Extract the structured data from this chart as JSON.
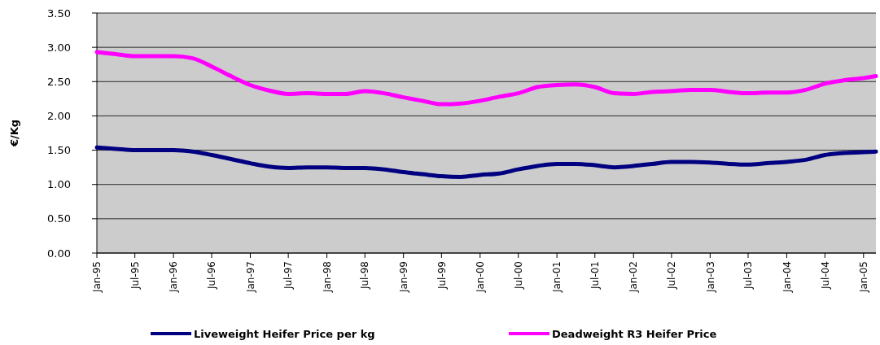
{
  "chart_data": {
    "type": "line",
    "ylabel": "€/Kg",
    "x": [
      "1995-01",
      "1995-04",
      "1995-07",
      "1995-10",
      "1996-01",
      "1996-04",
      "1996-07",
      "1996-10",
      "1997-01",
      "1997-04",
      "1997-07",
      "1997-10",
      "1998-01",
      "1998-04",
      "1998-07",
      "1998-10",
      "1999-01",
      "1999-04",
      "1999-07",
      "1999-10",
      "2000-01",
      "2000-04",
      "2000-07",
      "2000-10",
      "2001-01",
      "2001-04",
      "2001-07",
      "2001-10",
      "2002-01",
      "2002-04",
      "2002-07",
      "2002-10",
      "2003-01",
      "2003-04",
      "2003-07",
      "2003-10",
      "2004-01",
      "2004-04",
      "2004-07",
      "2004-10",
      "2005-01",
      "2005-03"
    ],
    "series": [
      {
        "name": "Liveweight Heifer Price per kg",
        "color": "#000080",
        "values": [
          1.54,
          1.52,
          1.5,
          1.5,
          1.5,
          1.48,
          1.43,
          1.37,
          1.31,
          1.26,
          1.24,
          1.25,
          1.25,
          1.24,
          1.24,
          1.22,
          1.18,
          1.15,
          1.12,
          1.11,
          1.14,
          1.16,
          1.22,
          1.27,
          1.3,
          1.3,
          1.28,
          1.25,
          1.27,
          1.3,
          1.33,
          1.33,
          1.32,
          1.3,
          1.29,
          1.31,
          1.33,
          1.36,
          1.43,
          1.46,
          1.47,
          1.48
        ]
      },
      {
        "name": "Deadweight R3 Heifer Price",
        "color": "#ff00ff",
        "values": [
          2.93,
          2.9,
          2.87,
          2.87,
          2.87,
          2.84,
          2.72,
          2.58,
          2.45,
          2.37,
          2.32,
          2.33,
          2.32,
          2.32,
          2.36,
          2.33,
          2.27,
          2.22,
          2.17,
          2.18,
          2.22,
          2.28,
          2.33,
          2.42,
          2.45,
          2.46,
          2.42,
          2.33,
          2.32,
          2.35,
          2.36,
          2.38,
          2.38,
          2.35,
          2.33,
          2.34,
          2.34,
          2.38,
          2.47,
          2.52,
          2.55,
          2.58
        ]
      }
    ],
    "xlim": [
      "1995-01",
      "2005-03"
    ],
    "xticks": [
      {
        "value": "1995-01",
        "label": "Jan-95"
      },
      {
        "value": "1995-07",
        "label": "Jul-95"
      },
      {
        "value": "1996-01",
        "label": "Jan-96"
      },
      {
        "value": "1996-07",
        "label": "Jul-96"
      },
      {
        "value": "1997-01",
        "label": "Jan-97"
      },
      {
        "value": "1997-07",
        "label": "Jul-97"
      },
      {
        "value": "1998-01",
        "label": "Jan-98"
      },
      {
        "value": "1998-07",
        "label": "Jul-98"
      },
      {
        "value": "1999-01",
        "label": "Jan-99"
      },
      {
        "value": "1999-07",
        "label": "Jul-99"
      },
      {
        "value": "2000-01",
        "label": "Jan-00"
      },
      {
        "value": "2000-07",
        "label": "Jul-00"
      },
      {
        "value": "2001-01",
        "label": "Jan-01"
      },
      {
        "value": "2001-07",
        "label": "Jul-01"
      },
      {
        "value": "2002-01",
        "label": "Jan-02"
      },
      {
        "value": "2002-07",
        "label": "Jul-02"
      },
      {
        "value": "2003-01",
        "label": "Jan-03"
      },
      {
        "value": "2003-07",
        "label": "Jul-03"
      },
      {
        "value": "2004-01",
        "label": "Jan-04"
      },
      {
        "value": "2004-07",
        "label": "Jul-04"
      },
      {
        "value": "2005-01",
        "label": "Jan-05"
      }
    ],
    "ylim": [
      0,
      3.5
    ],
    "yticks": [
      {
        "value": 0,
        "label": "0.00"
      },
      {
        "value": 0.5,
        "label": "0.50"
      },
      {
        "value": 1,
        "label": "1.00"
      },
      {
        "value": 1.5,
        "label": "1.50"
      },
      {
        "value": 2,
        "label": "2.00"
      },
      {
        "value": 2.5,
        "label": "2.50"
      },
      {
        "value": 3,
        "label": "3.00"
      },
      {
        "value": 3.5,
        "label": "3.50"
      }
    ],
    "grid": "y",
    "legend": "bottom",
    "marker": "none",
    "line_style": "solid"
  }
}
